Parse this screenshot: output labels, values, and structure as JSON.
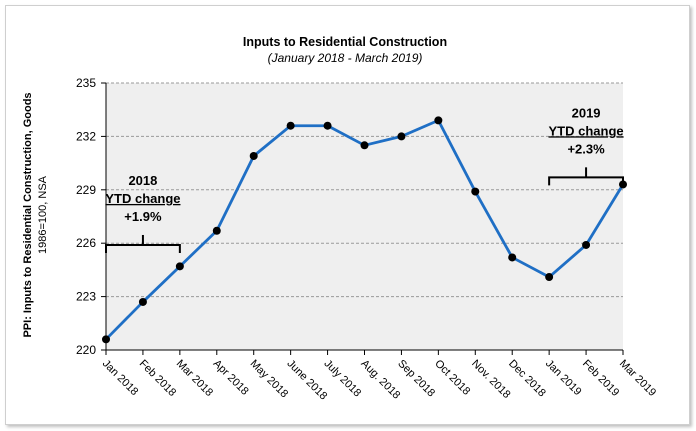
{
  "chart_data": {
    "type": "line",
    "title": "Inputs to Residential Construction",
    "subtitle": "(January 2018 - March 2019)",
    "ylabel_line1": "PPI: Inputs to Residential Construction, Goods",
    "ylabel_line2": "1986=100, NSA",
    "xlabel": "",
    "categories": [
      "Jan 2018",
      "Feb 2018",
      "Mar 2018",
      "Apr 2018",
      "May 2018",
      "June 2018",
      "July 2018",
      "Aug. 2018",
      "Sep 2018",
      "Oct 2018",
      "Nov. 2018",
      "Dec 2018",
      "Jan 2019",
      "Feb 2019",
      "Mar 2019"
    ],
    "values": [
      220.6,
      222.7,
      224.7,
      226.7,
      230.9,
      232.6,
      232.6,
      231.5,
      232.0,
      232.9,
      228.9,
      225.2,
      224.1,
      225.9,
      229.3
    ],
    "ylim": [
      220,
      235
    ],
    "yticks": [
      220,
      223,
      226,
      229,
      232,
      235
    ],
    "grid": true,
    "line_color": "#1f6fc5",
    "marker_color": "#000000",
    "plot_background": "#efefef",
    "annotations": [
      {
        "lines": [
          "2018",
          "YTD change",
          "+1.9%"
        ],
        "from_index": 0,
        "to_index": 2
      },
      {
        "lines": [
          "2019",
          "YTD change",
          "+2.3%"
        ],
        "from_index": 12,
        "to_index": 14
      }
    ]
  }
}
